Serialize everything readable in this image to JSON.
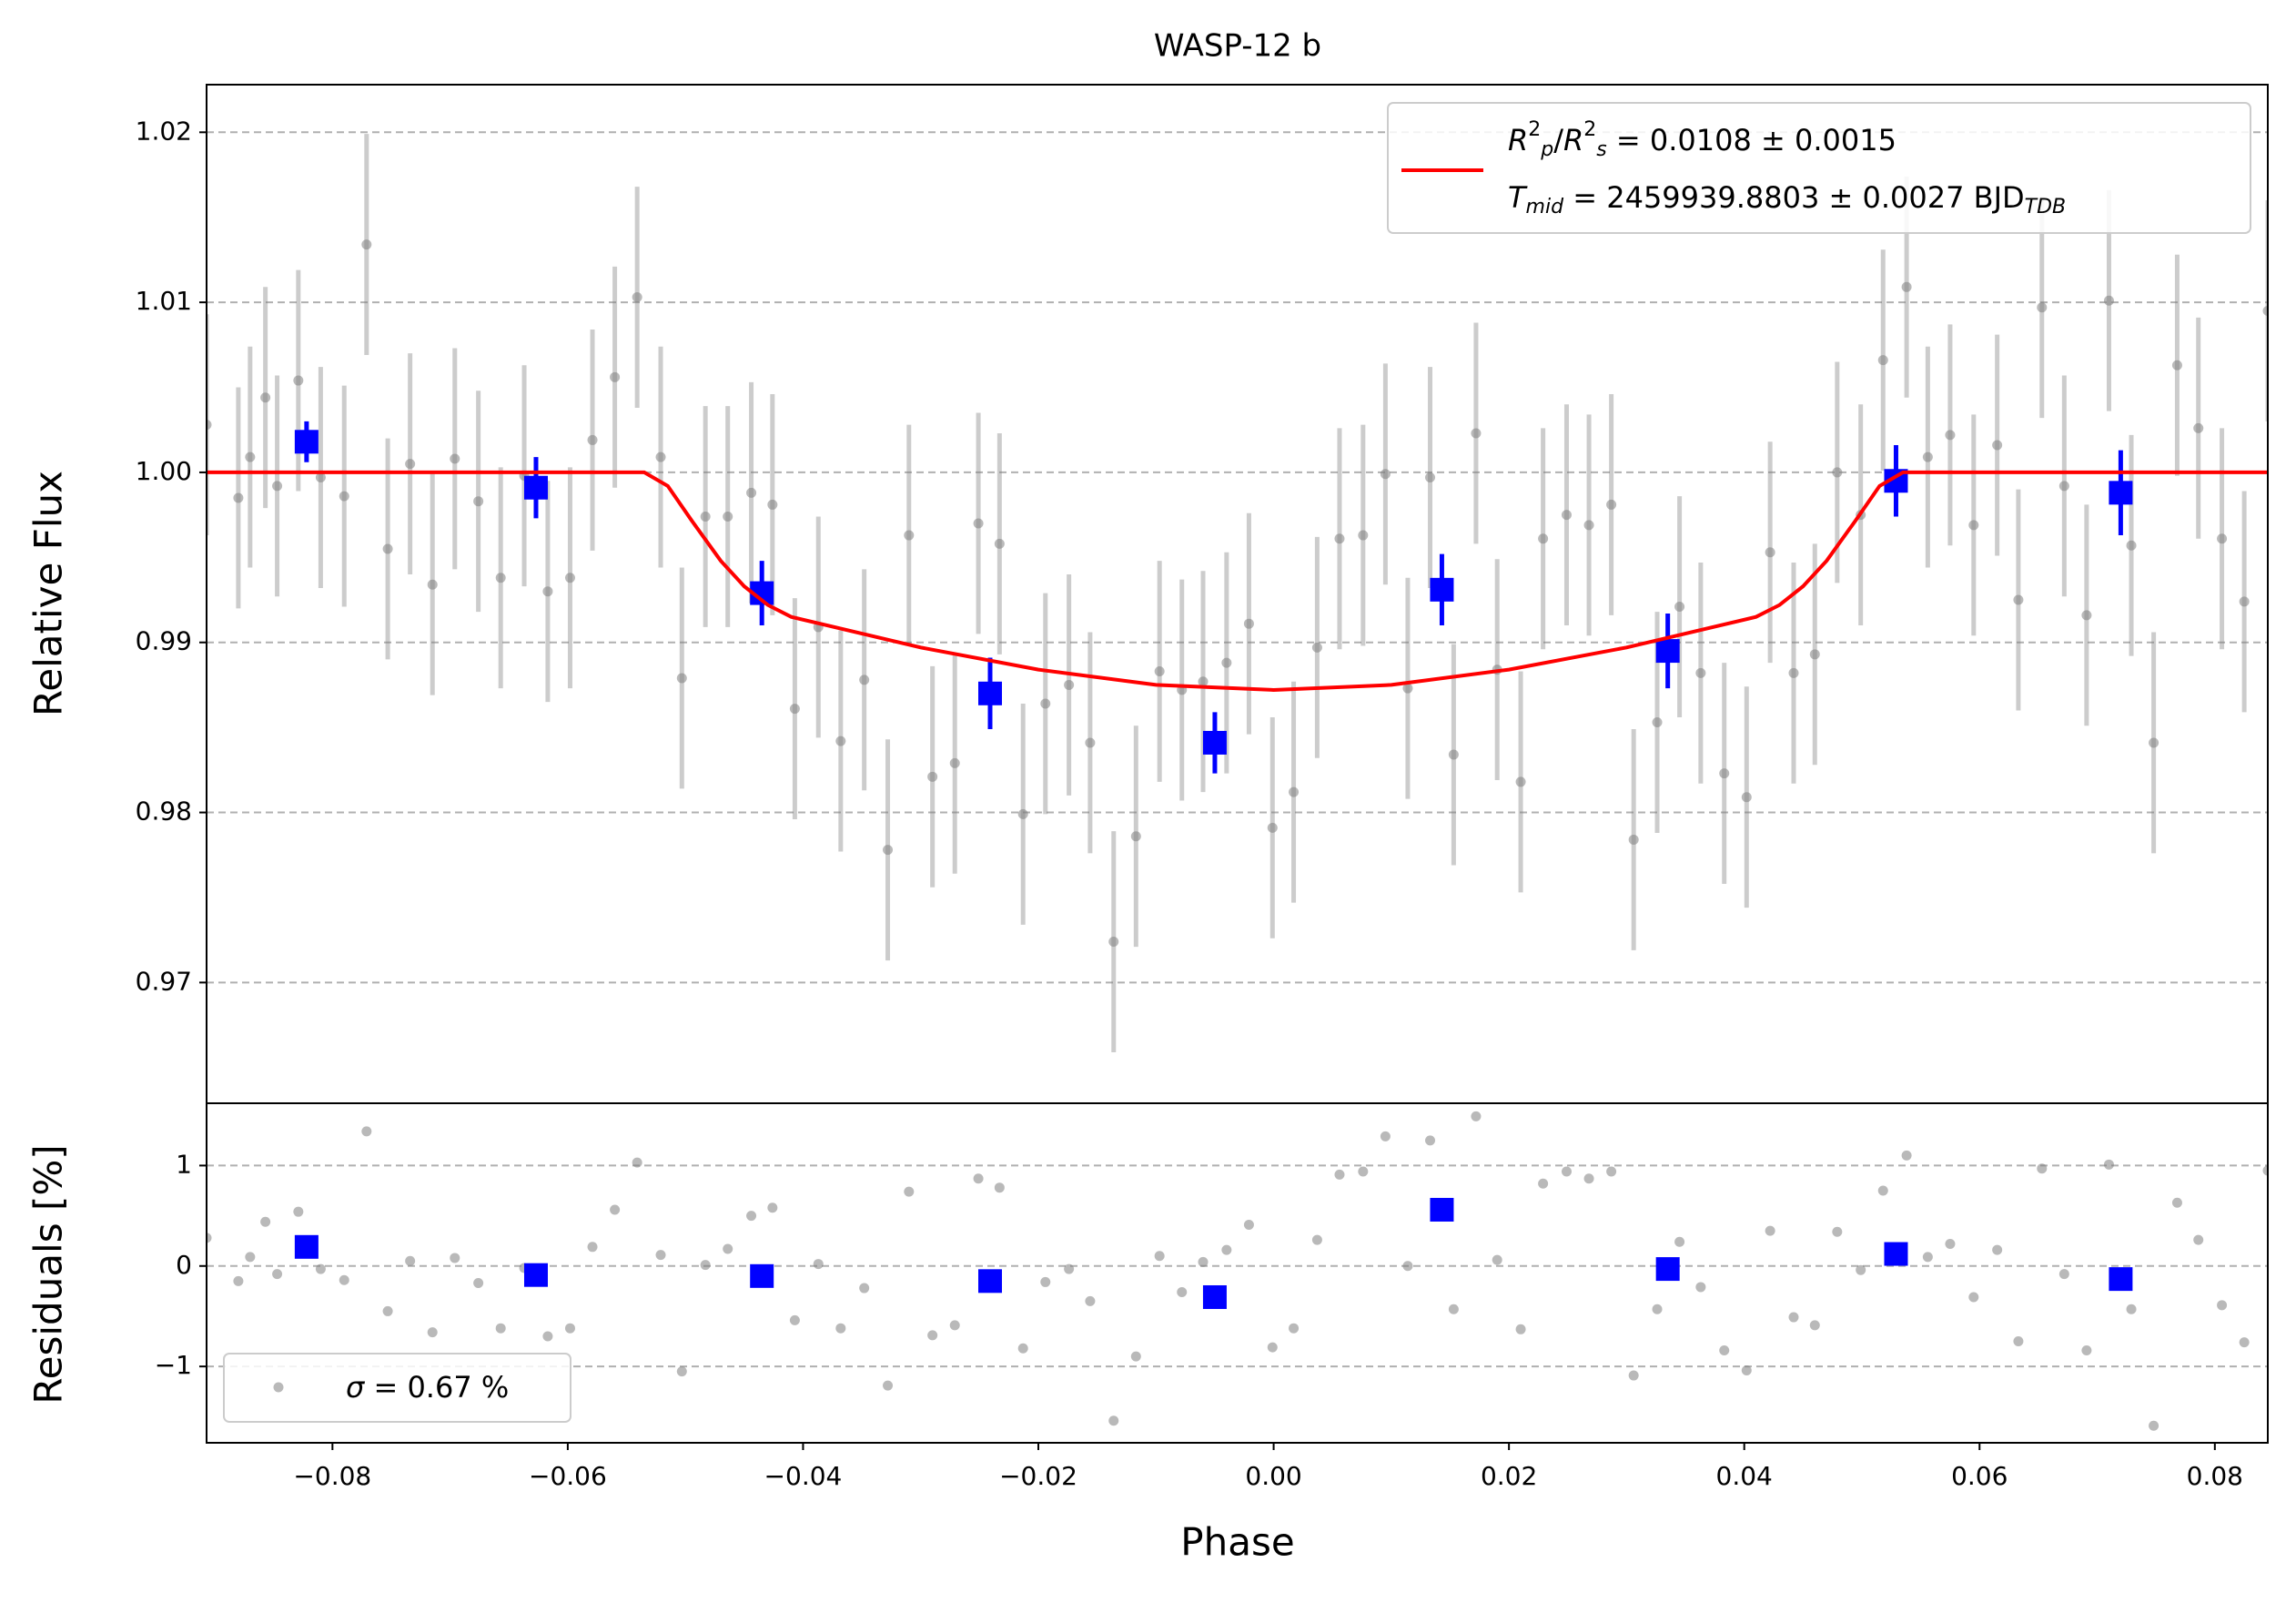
{
  "chart_data": [
    {
      "type": "scatter",
      "title": "WASP-12 b",
      "ylabel": "Relative Flux",
      "xlim": [
        -0.0907,
        0.0845
      ],
      "ylim": [
        0.9629,
        1.0228
      ],
      "yticks": [
        0.97,
        0.98,
        0.99,
        {
          "value": 1,
          "label": "1.00"
        },
        1.01,
        1.02
      ],
      "grid": true,
      "legend_position": "upper right",
      "series": [
        {
          "color": "#808080",
          "marker": "circle",
          "x": [
            -0.0907,
            -0.088,
            -0.087,
            -0.0857,
            -0.0847,
            -0.0829,
            -0.081,
            -0.079,
            -0.0771,
            -0.0753,
            -0.0734,
            -0.0715,
            -0.0696,
            -0.0676,
            -0.0657,
            -0.0637,
            -0.0617,
            -0.0598,
            -0.0579,
            -0.056,
            -0.0541,
            -0.0521,
            -0.0503,
            -0.0483,
            -0.0464,
            -0.0444,
            -0.0426,
            -0.0407,
            -0.0387,
            -0.0368,
            -0.0348,
            -0.0328,
            -0.031,
            -0.029,
            -0.0271,
            -0.0251,
            -0.0233,
            -0.0213,
            -0.0194,
            -0.0174,
            -0.0156,
            -0.0136,
            -0.0117,
            -0.0097,
            -0.0078,
            -0.006,
            -0.004,
            -0.0021,
            -0.0001,
            0.0017,
            0.0037,
            0.0056,
            0.0076,
            0.0095,
            0.0114,
            0.0133,
            0.0153,
            0.0172,
            0.019,
            0.021,
            0.0229,
            0.0249,
            0.0268,
            0.0287,
            0.0306,
            0.0326,
            0.0345,
            0.0363,
            0.0383,
            0.0402,
            0.0422,
            0.0442,
            0.046,
            0.0479,
            0.0499,
            0.0518,
            0.0538,
            0.0556,
            0.0575,
            0.0595,
            0.0615,
            0.0633,
            0.0653,
            0.0672,
            0.0691,
            0.071,
            0.0729,
            0.0748,
            0.0768,
            0.0786,
            0.0806,
            0.0825,
            0.0845
          ],
          "y": [
            1.0028,
            0.9985,
            1.0009,
            1.0044,
            0.9992,
            1.0054,
            0.9997,
            0.9986,
            1.0134,
            0.9955,
            1.0005,
            0.9934,
            1.0008,
            0.9983,
            0.9938,
            0.9998,
            0.993,
            0.9938,
            1.0019,
            1.0056,
            1.0103,
            1.0009,
            0.9879,
            0.9974,
            0.9974,
            0.9988,
            0.9981,
            0.9861,
            0.9909,
            0.9842,
            0.9878,
            0.9778,
            0.9963,
            0.9821,
            0.9829,
            0.997,
            0.9958,
            0.9799,
            0.9864,
            0.9875,
            0.9841,
            0.9724,
            0.9786,
            0.9883,
            0.9872,
            0.9877,
            0.9888,
            0.9911,
            0.9791,
            0.9812,
            0.9897,
            0.9961,
            0.9963,
            0.9999,
            0.9873,
            0.9997,
            0.9834,
            1.0023,
            0.9884,
            0.9818,
            0.9961,
            0.9975,
            0.9969,
            0.9981,
            0.9784,
            0.9853,
            0.9921,
            0.9882,
            0.9823,
            0.9809,
            0.9953,
            0.9882,
            0.9893,
            1.0,
            0.9975,
            1.0066,
            1.0109,
            1.0009,
            1.0022,
            0.9969,
            1.0016,
            0.9925,
            1.0097,
            0.9992,
            0.9916,
            1.0101,
            0.9957,
            0.9841,
            1.0063,
            1.0026,
            0.9961,
            0.9924,
            1.0095
          ],
          "yerr": 0.0065
        },
        {
          "color": "#0000ff",
          "marker": "square",
          "x": [
            -0.0822,
            -0.0627,
            -0.0435,
            -0.0241,
            -0.005,
            0.0143,
            0.0335,
            0.0529,
            0.072
          ],
          "y": [
            1.0018,
            0.9991,
            0.9929,
            0.987,
            0.9841,
            0.9931,
            0.9895,
            0.9995,
            0.9988
          ],
          "yerr": [
            0.0012,
            0.0018,
            0.0019,
            0.0021,
            0.0018,
            0.0021,
            0.0022,
            0.0021,
            0.0025
          ]
        },
        {
          "color": "#ff0000",
          "marker": "line",
          "name_lines": [
            [
              [
                "R",
                "i"
              ],
              [
                "2",
                "sup"
              ],
              [
                "p",
                "sub-i"
              ],
              [
                "/",
                "n"
              ],
              [
                "R",
                "i"
              ],
              [
                "2",
                "sup"
              ],
              [
                "s",
                "sub-i"
              ],
              [
                " = 0.0108 ± 0.0015",
                "n"
              ]
            ],
            [
              [
                "T",
                "i"
              ],
              [
                "mid",
                "sub-i"
              ],
              [
                " = 2459939.8803 ± 0.0027 BJD",
                "n"
              ],
              [
                "TDB",
                "sub-i"
              ]
            ]
          ],
          "x": [
            -0.0907,
            -0.0535,
            -0.0515,
            -0.0495,
            -0.047,
            -0.045,
            -0.043,
            -0.041,
            -0.03,
            -0.02,
            -0.01,
            0,
            0.01,
            0.02,
            0.03,
            0.041,
            0.043,
            0.045,
            0.047,
            0.0495,
            0.0515,
            0.0535,
            0.0845
          ],
          "y": [
            1,
            1,
            0.9992,
            0.9972,
            0.9948,
            0.9933,
            0.9922,
            0.9915,
            0.9897,
            0.9884,
            0.9875,
            0.9872,
            0.9875,
            0.9884,
            0.9897,
            0.9915,
            0.9922,
            0.9933,
            0.9948,
            0.9972,
            0.9992,
            1,
            1
          ]
        }
      ]
    },
    {
      "type": "scatter",
      "xlabel": "Phase",
      "ylabel": "Residuals [%]",
      "xlim": [
        -0.0907,
        0.0845
      ],
      "ylim": [
        -1.76,
        1.62
      ],
      "xticks": [
        {
          "value": -0.08,
          "label": "−0.08"
        },
        {
          "value": -0.06,
          "label": "−0.06"
        },
        {
          "value": -0.04,
          "label": "−0.04"
        },
        {
          "value": -0.02,
          "label": "−0.02"
        },
        {
          "value": 0,
          "label": "0.00"
        },
        0.02,
        0.04,
        0.06,
        0.08
      ],
      "yticks": [
        {
          "value": -1,
          "label": "−1"
        },
        0,
        1
      ],
      "grid": true,
      "legend_position": "lower left",
      "series": [
        {
          "color": "#808080",
          "marker": "circle",
          "name_parts": [
            [
              "σ",
              "i"
            ],
            [
              " = 0.67 %",
              "n"
            ]
          ],
          "values": [
            0.28,
            -0.15,
            0.09,
            0.44,
            -0.08,
            0.54,
            -0.03,
            -0.14,
            1.34,
            -0.45,
            0.05,
            -0.66,
            0.08,
            -0.17,
            -0.62,
            -0.02,
            -0.7,
            -0.62,
            0.19,
            0.56,
            1.03,
            0.11,
            -1.05,
            0.01,
            0.17,
            0.5,
            0.58,
            -0.54,
            0.02,
            -0.62,
            -0.22,
            -1.19,
            0.74,
            -0.69,
            -0.59,
            0.87,
            0.78,
            -0.82,
            -0.16,
            -0.03,
            -0.35,
            -1.54,
            -0.9,
            0.1,
            -0.26,
            0.04,
            0.16,
            0.41,
            -0.81,
            -0.62,
            0.26,
            0.91,
            0.94,
            1.29,
            0,
            1.25,
            -0.43,
            1.49,
            0.06,
            -0.63,
            0.82,
            0.94,
            0.87,
            0.94,
            -1.09,
            -0.43,
            0.24,
            -0.21,
            -0.84,
            -1.04,
            0.35,
            -0.51,
            -0.59,
            0.34,
            -0.04,
            0.75,
            1.1,
            0.09,
            0.22,
            -0.31,
            0.16,
            -0.75,
            0.97,
            -0.08,
            -0.84,
            1.01,
            -0.43,
            -1.59,
            0.63,
            0.26,
            -0.39,
            -0.76,
            0.95
          ]
        },
        {
          "color": "#0000ff",
          "marker": "square",
          "values": [
            0.19,
            -0.09,
            -0.1,
            -0.15,
            -0.31,
            0.56,
            -0.03,
            0.12,
            -0.13
          ]
        }
      ]
    }
  ]
}
